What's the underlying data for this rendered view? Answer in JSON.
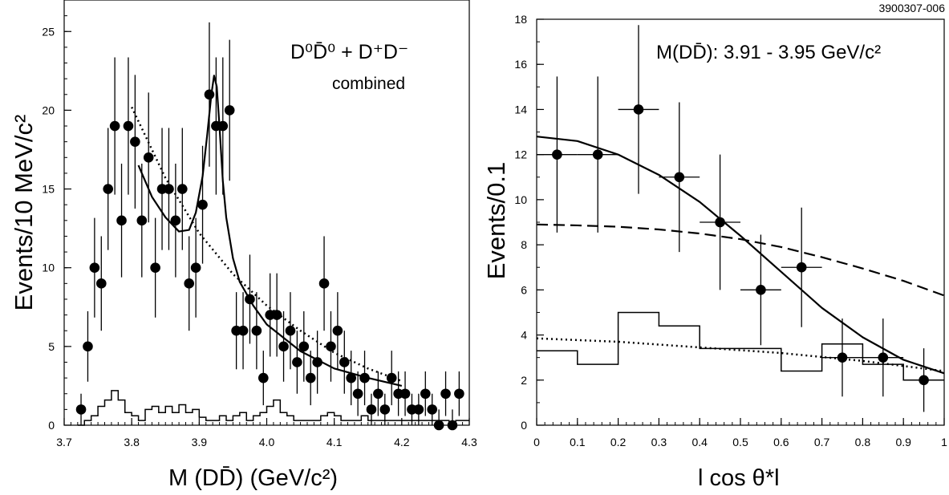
{
  "figure_id": "3900307-006",
  "chart_data": [
    {
      "type": "scatter",
      "panel": "left",
      "title": "",
      "xlabel": "M (DD̄) (GeV/c²)",
      "ylabel": "Events/10 MeV/c²",
      "xlim": [
        3.7,
        4.3
      ],
      "ylim": [
        0,
        27
      ],
      "x_ticks": [
        "3.7",
        "3.8",
        "3.9",
        "4.0",
        "4.1",
        "4.2",
        "4.3"
      ],
      "y_ticks": [
        "0",
        "5",
        "10",
        "15",
        "20",
        "25"
      ],
      "grid": false,
      "annotations": [
        "D⁰D̄⁰ + D⁺D⁻",
        "combined"
      ],
      "series": [
        {
          "kind": "points",
          "x": [
            3.725,
            3.735,
            3.745,
            3.755,
            3.765,
            3.775,
            3.785,
            3.795,
            3.805,
            3.815,
            3.825,
            3.835,
            3.845,
            3.855,
            3.865,
            3.875,
            3.885,
            3.895,
            3.905,
            3.915,
            3.925,
            3.935,
            3.945,
            3.955,
            3.965,
            3.975,
            3.985,
            3.995,
            4.005,
            4.015,
            4.025,
            4.035,
            4.045,
            4.055,
            4.065,
            4.075,
            4.085,
            4.095,
            4.105,
            4.115,
            4.125,
            4.135,
            4.145,
            4.155,
            4.165,
            4.175,
            4.185,
            4.195,
            4.205,
            4.215,
            4.225,
            4.235,
            4.245,
            4.255,
            4.265,
            4.275,
            4.285
          ],
          "y": [
            1,
            5,
            10,
            9,
            15,
            19,
            13,
            19,
            18,
            13,
            17,
            10,
            15,
            15,
            13,
            15,
            9,
            10,
            14,
            21,
            19,
            19,
            20,
            6,
            6,
            8,
            6,
            3,
            7,
            7,
            5,
            6,
            4,
            5,
            3,
            4,
            9,
            5,
            6,
            4,
            3,
            2,
            3,
            1,
            2,
            1,
            3,
            2,
            2,
            1,
            1,
            2,
            1,
            0,
            2,
            0,
            2
          ]
        },
        {
          "kind": "solid-curve",
          "x": [
            3.81,
            3.83,
            3.85,
            3.87,
            3.885,
            3.895,
            3.905,
            3.912,
            3.918,
            3.922,
            3.926,
            3.93,
            3.935,
            3.94,
            3.95,
            3.96,
            3.98,
            4.0,
            4.05,
            4.1,
            4.15,
            4.2
          ],
          "y": [
            16.5,
            14.5,
            13.2,
            12.3,
            12.4,
            13.5,
            15.8,
            18.5,
            21,
            22.2,
            21.5,
            19,
            15.5,
            13.2,
            10.6,
            9.1,
            7.6,
            6.4,
            4.7,
            3.6,
            3.0,
            2.5
          ]
        },
        {
          "kind": "dotted-curve",
          "x": [
            3.8,
            3.85,
            3.9,
            3.95,
            4.0,
            4.05,
            4.1,
            4.15,
            4.2
          ],
          "y": [
            20.2,
            15.7,
            12.2,
            9.6,
            7.6,
            6.0,
            4.6,
            3.6,
            2.8
          ]
        },
        {
          "kind": "histogram",
          "bin_width": 0.01,
          "x_start": 3.72,
          "values": [
            0.0,
            0.3,
            0.6,
            1.2,
            1.6,
            2.2,
            1.6,
            0.8,
            0.6,
            0.3,
            1.0,
            1.2,
            0.8,
            1.2,
            0.8,
            1.3,
            0.8,
            1.0,
            0.5,
            0.3,
            0.3,
            0.6,
            0.3,
            0.6,
            0.8,
            0.3,
            0.6,
            0.8,
            1.2,
            1.6,
            0.8,
            0.6,
            0.3,
            0.3,
            0.3,
            0.3,
            0.6,
            0.8,
            0.6,
            0.3,
            0.3,
            0.3,
            0.6,
            0.3,
            0.3,
            0.3,
            0.3,
            0.3,
            0.3,
            0.3,
            0.3,
            0.3,
            0.3,
            0.3,
            0.3,
            0.0,
            0.3,
            0.3
          ]
        }
      ]
    },
    {
      "type": "scatter",
      "panel": "right",
      "title": "",
      "xlabel": "l cos θ*l",
      "ylabel": "Events/0.1",
      "xlim": [
        0,
        1
      ],
      "ylim": [
        0,
        18
      ],
      "x_ticks": [
        "0",
        "0.1",
        "0.2",
        "0.3",
        "0.4",
        "0.5",
        "0.6",
        "0.7",
        "0.8",
        "0.9",
        "1"
      ],
      "y_ticks": [
        "0",
        "2",
        "4",
        "6",
        "8",
        "10",
        "12",
        "14",
        "16",
        "18"
      ],
      "grid": false,
      "annotations": [
        "M(DD̄): 3.91 - 3.95 GeV/c²"
      ],
      "series": [
        {
          "kind": "points",
          "x": [
            0.05,
            0.15,
            0.25,
            0.35,
            0.45,
            0.55,
            0.65,
            0.75,
            0.85,
            0.95
          ],
          "y": [
            12,
            12,
            14,
            11,
            9,
            6,
            7,
            3,
            3,
            2
          ],
          "yerr": [
            3.46,
            3.46,
            3.74,
            3.32,
            3.0,
            2.45,
            2.65,
            1.73,
            1.73,
            1.41
          ]
        },
        {
          "kind": "solid-curve",
          "x": [
            0,
            0.1,
            0.2,
            0.3,
            0.4,
            0.5,
            0.6,
            0.7,
            0.8,
            0.9,
            1.0
          ],
          "y": [
            12.8,
            12.6,
            12.0,
            11.1,
            9.9,
            8.4,
            6.8,
            5.2,
            3.9,
            2.9,
            2.3
          ]
        },
        {
          "kind": "dashed-curve",
          "x": [
            0,
            0.1,
            0.2,
            0.3,
            0.4,
            0.5,
            0.6,
            0.7,
            0.8,
            0.9,
            1.0
          ],
          "y": [
            8.9,
            8.86,
            8.8,
            8.68,
            8.5,
            8.25,
            7.9,
            7.45,
            6.95,
            6.4,
            5.75
          ]
        },
        {
          "kind": "dotted-curve",
          "x": [
            0,
            0.2,
            0.4,
            0.6,
            0.8,
            1.0
          ],
          "y": [
            3.85,
            3.7,
            3.45,
            3.2,
            2.85,
            2.4
          ]
        },
        {
          "kind": "histogram",
          "bin_width": 0.1,
          "x_start": 0.0,
          "values": [
            3.3,
            2.7,
            5.0,
            4.4,
            3.4,
            3.4,
            2.4,
            3.6,
            2.7,
            2.0
          ]
        }
      ]
    }
  ]
}
